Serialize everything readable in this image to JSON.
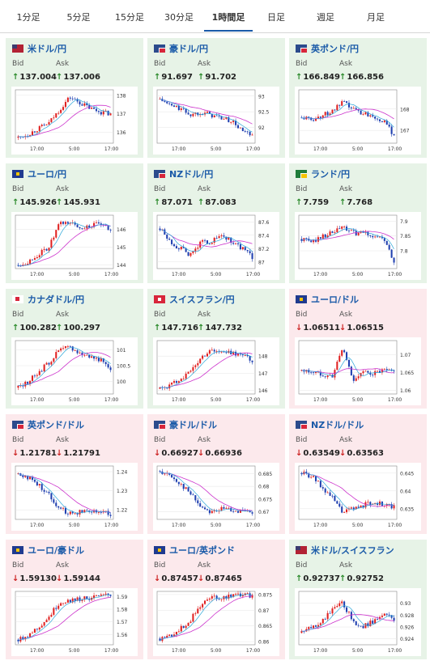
{
  "tabs": [
    {
      "label": "1分足",
      "active": false
    },
    {
      "label": "5分足",
      "active": false
    },
    {
      "label": "15分足",
      "active": false
    },
    {
      "label": "30分足",
      "active": false
    },
    {
      "label": "1時間足",
      "active": true
    },
    {
      "label": "日足",
      "active": false
    },
    {
      "label": "週足",
      "active": false
    },
    {
      "label": "月足",
      "active": false
    }
  ],
  "labels": {
    "bid": "Bid",
    "ask": "Ask"
  },
  "colors": {
    "up_bg": "#e7f3e7",
    "down_bg": "#fce9ec",
    "title": "#1a5aa8",
    "up_arrow": "#2a8a2a",
    "down_arrow": "#cc2222",
    "up_candle": "#e02020",
    "down_candle": "#1f3fb0",
    "ma_line": "#cc33cc",
    "fast_line": "#2aa6d8"
  },
  "panels": [
    {
      "name": "米ドル/円",
      "flag": "us-flag-icon",
      "direction": "up",
      "bid": "137.004",
      "ask": "137.006",
      "x_labels": [
        "17:00",
        "5:00",
        "17:00"
      ],
      "y_labels": [
        "138",
        "137",
        "136"
      ],
      "trend": [
        135.7,
        135.9,
        136.2,
        136.5,
        137.2,
        137.9,
        137.6,
        137.3,
        137.1,
        137.0
      ],
      "ymin": 135.4,
      "ymax": 138.3
    },
    {
      "name": "豪ドル/円",
      "flag": "au-flag-icon",
      "direction": "up",
      "bid": "91.697",
      "ask": "91.702",
      "x_labels": [
        "17:00",
        "5:00",
        "17:00"
      ],
      "y_labels": [
        "93",
        "92.5",
        "92"
      ],
      "trend": [
        92.9,
        92.7,
        92.6,
        92.4,
        92.5,
        92.4,
        92.3,
        92.2,
        91.9,
        91.7
      ],
      "ymin": 91.5,
      "ymax": 93.2
    },
    {
      "name": "英ポンド/円",
      "flag": "gb-flag-icon",
      "direction": "up",
      "bid": "166.849",
      "ask": "166.856",
      "x_labels": [
        "17:00",
        "5:00",
        "17:00"
      ],
      "y_labels": [
        "168",
        "167"
      ],
      "trend": [
        167.6,
        167.5,
        167.7,
        167.9,
        168.3,
        168.0,
        167.8,
        167.7,
        167.4,
        166.8
      ],
      "ymin": 166.4,
      "ymax": 168.9
    },
    {
      "name": "ユーロ/円",
      "flag": "eu-flag-icon",
      "direction": "up",
      "bid": "145.926",
      "ask": "145.931",
      "x_labels": [
        "17:00",
        "5:00",
        "17:00"
      ],
      "y_labels": [
        "146",
        "145",
        "144"
      ],
      "trend": [
        144.0,
        144.2,
        144.6,
        145.0,
        146.3,
        146.4,
        146.1,
        146.2,
        146.3,
        145.9
      ],
      "ymin": 143.8,
      "ymax": 146.8
    },
    {
      "name": "NZドル/円",
      "flag": "nz-flag-icon",
      "direction": "up",
      "bid": "87.071",
      "ask": "87.083",
      "x_labels": [
        "17:00",
        "5:00",
        "17:00"
      ],
      "y_labels": [
        "87.6",
        "87.4",
        "87.2",
        "87"
      ],
      "trend": [
        87.5,
        87.3,
        87.2,
        87.1,
        87.3,
        87.3,
        87.4,
        87.3,
        87.2,
        87.07
      ],
      "ymin": 86.9,
      "ymax": 87.7
    },
    {
      "name": "ランド/円",
      "flag": "za-flag-icon",
      "direction": "up",
      "bid": "7.759",
      "ask": "7.768",
      "x_labels": [
        "17:00",
        "5:00",
        "17:00"
      ],
      "y_labels": [
        "7.9",
        "7.85",
        "7.8"
      ],
      "trend": [
        7.84,
        7.83,
        7.85,
        7.86,
        7.88,
        7.86,
        7.86,
        7.85,
        7.84,
        7.76
      ],
      "ymin": 7.74,
      "ymax": 7.92
    },
    {
      "name": "カナダドル/円",
      "flag": "ca-flag-icon",
      "direction": "up",
      "bid": "100.282",
      "ask": "100.297",
      "x_labels": [
        "17:00",
        "5:00",
        "17:00"
      ],
      "y_labels": [
        "101",
        "100.5",
        "100"
      ],
      "trend": [
        99.8,
        100.0,
        100.3,
        100.6,
        101.0,
        101.1,
        100.9,
        100.8,
        100.7,
        100.3
      ],
      "ymin": 99.6,
      "ymax": 101.3
    },
    {
      "name": "スイスフラン/円",
      "flag": "ch-flag-icon",
      "direction": "up",
      "bid": "147.716",
      "ask": "147.732",
      "x_labels": [
        "17:00",
        "5:00",
        "17:00"
      ],
      "y_labels": [
        "148",
        "147",
        "146"
      ],
      "trend": [
        146.1,
        146.3,
        146.7,
        147.1,
        147.9,
        148.4,
        148.2,
        148.2,
        148.1,
        147.7
      ],
      "ymin": 145.8,
      "ymax": 148.9
    },
    {
      "name": "ユーロ/ドル",
      "flag": "eu-flag-icon",
      "direction": "down",
      "bid": "1.06511",
      "ask": "1.06515",
      "x_labels": [
        "17:00",
        "5:00",
        "17:00"
      ],
      "y_labels": [
        "1.07",
        "1.065",
        "1.06"
      ],
      "trend": [
        1.0655,
        1.0652,
        1.0645,
        1.064,
        1.072,
        1.063,
        1.065,
        1.0648,
        1.0655,
        1.0651
      ],
      "ymin": 1.059,
      "ymax": 1.074
    },
    {
      "name": "英ポンド/ドル",
      "flag": "gb-flag-icon",
      "direction": "down",
      "bid": "1.21781",
      "ask": "1.21791",
      "x_labels": [
        "17:00",
        "5:00",
        "17:00"
      ],
      "y_labels": [
        "1.24",
        "1.23",
        "1.22"
      ],
      "trend": [
        1.239,
        1.237,
        1.233,
        1.228,
        1.221,
        1.218,
        1.219,
        1.22,
        1.219,
        1.2178
      ],
      "ymin": 1.215,
      "ymax": 1.243
    },
    {
      "name": "豪ドル/ドル",
      "flag": "au-flag-icon",
      "direction": "down",
      "bid": "0.66927",
      "ask": "0.66936",
      "x_labels": [
        "17:00",
        "5:00",
        "17:00"
      ],
      "y_labels": [
        "0.685",
        "0.68",
        "0.675",
        "0.67"
      ],
      "trend": [
        0.686,
        0.684,
        0.681,
        0.677,
        0.672,
        0.67,
        0.671,
        0.671,
        0.67,
        0.6693
      ],
      "ymin": 0.667,
      "ymax": 0.688
    },
    {
      "name": "NZドル/ドル",
      "flag": "nz-flag-icon",
      "direction": "down",
      "bid": "0.63549",
      "ask": "0.63563",
      "x_labels": [
        "17:00",
        "5:00",
        "17:00"
      ],
      "y_labels": [
        "0.645",
        "0.64",
        "0.635"
      ],
      "trend": [
        0.645,
        0.644,
        0.641,
        0.638,
        0.634,
        0.635,
        0.636,
        0.637,
        0.636,
        0.6355
      ],
      "ymin": 0.632,
      "ymax": 0.647
    },
    {
      "name": "ユーロ/豪ドル",
      "flag": "eu-flag-icon",
      "direction": "down",
      "bid": "1.59130",
      "ask": "1.59144",
      "x_labels": [
        "17:00",
        "5:00",
        "17:00"
      ],
      "y_labels": [
        "1.59",
        "1.58",
        "1.57",
        "1.56"
      ],
      "trend": [
        1.556,
        1.56,
        1.566,
        1.574,
        1.585,
        1.587,
        1.588,
        1.589,
        1.59,
        1.5913
      ],
      "ymin": 1.552,
      "ymax": 1.594
    },
    {
      "name": "ユーロ/英ポンド",
      "flag": "eu-flag-icon",
      "direction": "down",
      "bid": "0.87457",
      "ask": "0.87465",
      "x_labels": [
        "17:00",
        "5:00",
        "17:00"
      ],
      "y_labels": [
        "0.875",
        "0.87",
        "0.865",
        "0.86"
      ],
      "trend": [
        0.861,
        0.862,
        0.864,
        0.867,
        0.872,
        0.874,
        0.874,
        0.875,
        0.875,
        0.8746
      ],
      "ymin": 0.859,
      "ymax": 0.876
    },
    {
      "name": "米ドル/スイスフラン",
      "flag": "us-flag-icon",
      "direction": "up",
      "bid": "0.92737",
      "ask": "0.92752",
      "x_labels": [
        "17:00",
        "5:00",
        "17:00"
      ],
      "y_labels": [
        "0.93",
        "0.928",
        "0.926",
        "0.924"
      ],
      "trend": [
        0.925,
        0.926,
        0.927,
        0.929,
        0.93,
        0.927,
        0.926,
        0.927,
        0.928,
        0.9274
      ],
      "ymin": 0.923,
      "ymax": 0.932
    }
  ]
}
